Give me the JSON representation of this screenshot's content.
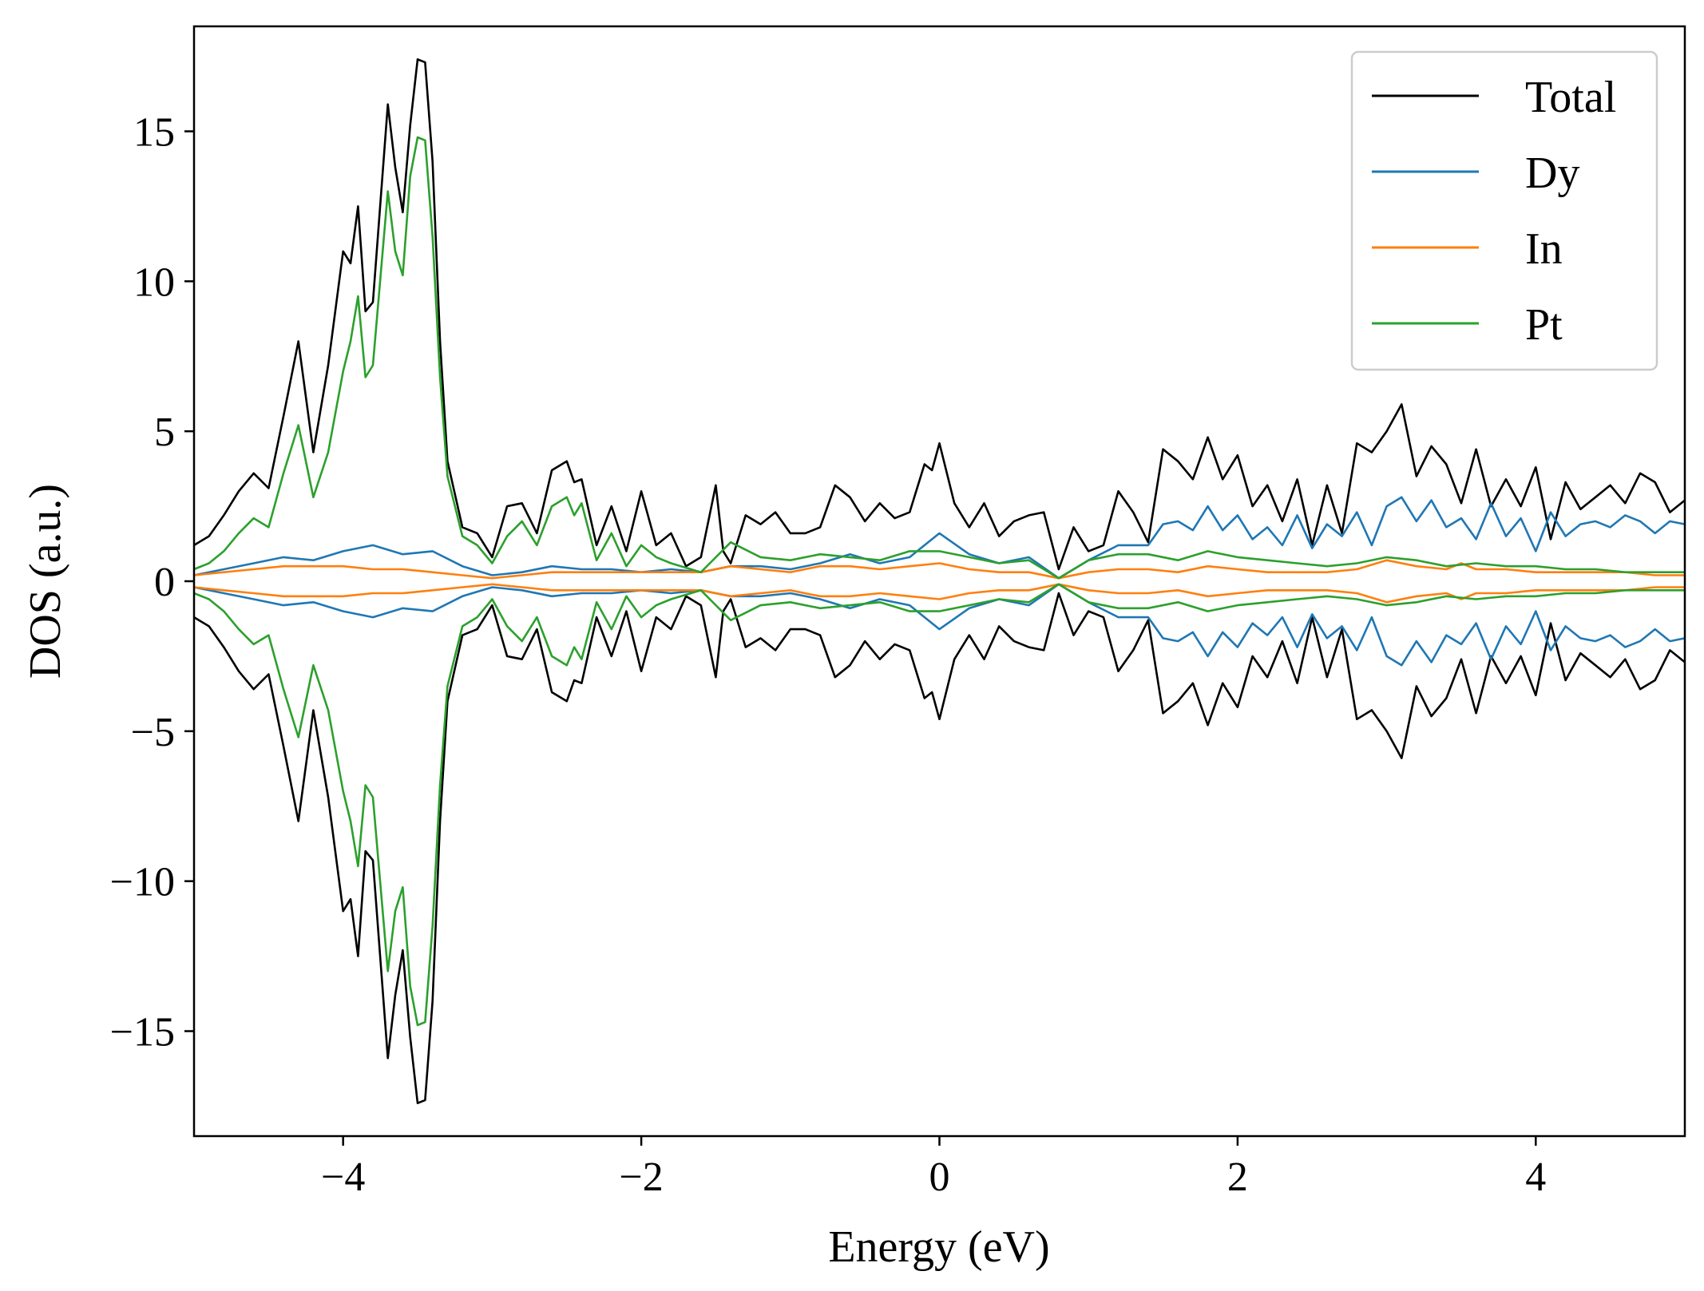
{
  "chart_data": {
    "type": "line",
    "title": "",
    "xlabel": "Energy (eV)",
    "ylabel": "DOS (a.u.)",
    "xlim": [
      -5,
      5
    ],
    "ylim": [
      -18.5,
      18.5
    ],
    "xticks": [
      -4,
      -2,
      0,
      2,
      4
    ],
    "xtick_labels": [
      "−4",
      "−2",
      "0",
      "2",
      "4"
    ],
    "yticks": [
      15,
      10,
      5,
      0,
      -5,
      -10,
      -15
    ],
    "ytick_labels": [
      "15",
      "10",
      "5",
      "0",
      "−5",
      "−10",
      "−15"
    ],
    "grid": false,
    "legend_position": "top-right",
    "spin_symmetric_mirror": true,
    "series": [
      {
        "name": "Total",
        "color": "#000000",
        "x": [
          -5.0,
          -4.9,
          -4.8,
          -4.7,
          -4.6,
          -4.5,
          -4.4,
          -4.3,
          -4.2,
          -4.1,
          -4.0,
          -3.95,
          -3.9,
          -3.85,
          -3.8,
          -3.7,
          -3.65,
          -3.6,
          -3.55,
          -3.5,
          -3.45,
          -3.4,
          -3.35,
          -3.3,
          -3.2,
          -3.1,
          -3.0,
          -2.9,
          -2.8,
          -2.7,
          -2.6,
          -2.5,
          -2.45,
          -2.4,
          -2.3,
          -2.2,
          -2.1,
          -2.0,
          -1.9,
          -1.8,
          -1.7,
          -1.6,
          -1.5,
          -1.45,
          -1.4,
          -1.3,
          -1.2,
          -1.1,
          -1.0,
          -0.9,
          -0.8,
          -0.7,
          -0.6,
          -0.5,
          -0.4,
          -0.3,
          -0.2,
          -0.1,
          -0.05,
          0.0,
          0.1,
          0.2,
          0.3,
          0.4,
          0.5,
          0.6,
          0.7,
          0.8,
          0.9,
          1.0,
          1.1,
          1.2,
          1.3,
          1.4,
          1.5,
          1.6,
          1.7,
          1.8,
          1.9,
          2.0,
          2.1,
          2.2,
          2.3,
          2.4,
          2.5,
          2.6,
          2.7,
          2.8,
          2.9,
          3.0,
          3.1,
          3.2,
          3.3,
          3.4,
          3.5,
          3.6,
          3.7,
          3.8,
          3.9,
          4.0,
          4.1,
          4.2,
          4.3,
          4.4,
          4.5,
          4.6,
          4.7,
          4.8,
          4.9,
          5.0
        ],
        "y": [
          1.2,
          1.5,
          2.2,
          3.0,
          3.6,
          3.1,
          5.5,
          8.0,
          4.3,
          7.2,
          11.0,
          10.6,
          12.5,
          9.0,
          9.3,
          15.9,
          13.8,
          12.3,
          15.2,
          17.4,
          17.3,
          14.0,
          8.0,
          4.0,
          1.8,
          1.6,
          0.8,
          2.5,
          2.6,
          1.6,
          3.7,
          4.0,
          3.3,
          3.4,
          1.2,
          2.5,
          1.0,
          3.0,
          1.2,
          1.6,
          0.5,
          0.8,
          3.2,
          1.0,
          0.6,
          2.2,
          1.9,
          2.3,
          1.6,
          1.6,
          1.8,
          3.2,
          2.8,
          2.0,
          2.6,
          2.1,
          2.3,
          3.9,
          3.7,
          4.6,
          2.6,
          1.8,
          2.6,
          1.5,
          2.0,
          2.2,
          2.3,
          0.4,
          1.8,
          1.0,
          1.2,
          3.0,
          2.3,
          1.3,
          4.4,
          4.0,
          3.4,
          4.8,
          3.4,
          4.2,
          2.5,
          3.2,
          2.0,
          3.4,
          1.2,
          3.2,
          1.6,
          4.6,
          4.3,
          5.0,
          5.9,
          3.5,
          4.5,
          3.9,
          2.6,
          4.4,
          2.5,
          3.4,
          2.5,
          3.8,
          1.4,
          3.3,
          2.4,
          2.8,
          3.2,
          2.6,
          3.6,
          3.3,
          2.3,
          2.7
        ]
      },
      {
        "name": "Dy",
        "color": "#1f77b4",
        "x": [
          -5.0,
          -4.8,
          -4.6,
          -4.4,
          -4.2,
          -4.0,
          -3.8,
          -3.6,
          -3.4,
          -3.2,
          -3.0,
          -2.8,
          -2.6,
          -2.4,
          -2.2,
          -2.0,
          -1.8,
          -1.6,
          -1.4,
          -1.2,
          -1.0,
          -0.8,
          -0.6,
          -0.4,
          -0.2,
          0.0,
          0.2,
          0.4,
          0.6,
          0.8,
          1.0,
          1.2,
          1.4,
          1.5,
          1.6,
          1.7,
          1.8,
          1.9,
          2.0,
          2.1,
          2.2,
          2.3,
          2.4,
          2.5,
          2.6,
          2.7,
          2.8,
          2.9,
          3.0,
          3.1,
          3.2,
          3.3,
          3.4,
          3.5,
          3.6,
          3.7,
          3.8,
          3.9,
          4.0,
          4.1,
          4.2,
          4.3,
          4.4,
          4.5,
          4.6,
          4.7,
          4.8,
          4.9,
          5.0
        ],
        "y": [
          0.2,
          0.4,
          0.6,
          0.8,
          0.7,
          1.0,
          1.2,
          0.9,
          1.0,
          0.5,
          0.2,
          0.3,
          0.5,
          0.4,
          0.4,
          0.3,
          0.4,
          0.3,
          0.5,
          0.5,
          0.4,
          0.6,
          0.9,
          0.6,
          0.8,
          1.6,
          0.9,
          0.6,
          0.8,
          0.1,
          0.7,
          1.2,
          1.2,
          1.9,
          2.0,
          1.7,
          2.5,
          1.7,
          2.2,
          1.4,
          1.8,
          1.2,
          2.2,
          1.1,
          1.9,
          1.5,
          2.3,
          1.2,
          2.5,
          2.8,
          2.0,
          2.7,
          1.8,
          2.1,
          1.4,
          2.6,
          1.5,
          2.1,
          1.0,
          2.3,
          1.5,
          1.9,
          2.0,
          1.8,
          2.2,
          2.0,
          1.6,
          2.0,
          1.9
        ]
      },
      {
        "name": "In",
        "color": "#ff7f0e",
        "x": [
          -5.0,
          -4.8,
          -4.6,
          -4.4,
          -4.2,
          -4.0,
          -3.8,
          -3.6,
          -3.4,
          -3.2,
          -3.0,
          -2.8,
          -2.6,
          -2.4,
          -2.2,
          -2.0,
          -1.8,
          -1.6,
          -1.4,
          -1.2,
          -1.0,
          -0.8,
          -0.6,
          -0.4,
          -0.2,
          0.0,
          0.2,
          0.4,
          0.6,
          0.8,
          1.0,
          1.2,
          1.4,
          1.6,
          1.8,
          2.0,
          2.2,
          2.4,
          2.6,
          2.8,
          3.0,
          3.2,
          3.4,
          3.5,
          3.6,
          3.8,
          4.0,
          4.2,
          4.4,
          4.6,
          4.8,
          5.0
        ],
        "y": [
          0.2,
          0.3,
          0.4,
          0.5,
          0.5,
          0.5,
          0.4,
          0.4,
          0.3,
          0.2,
          0.1,
          0.2,
          0.3,
          0.3,
          0.3,
          0.3,
          0.3,
          0.3,
          0.5,
          0.4,
          0.3,
          0.5,
          0.5,
          0.4,
          0.5,
          0.6,
          0.4,
          0.3,
          0.3,
          0.1,
          0.3,
          0.4,
          0.4,
          0.3,
          0.5,
          0.4,
          0.3,
          0.3,
          0.3,
          0.4,
          0.7,
          0.5,
          0.4,
          0.6,
          0.4,
          0.4,
          0.3,
          0.3,
          0.3,
          0.3,
          0.2,
          0.2
        ]
      },
      {
        "name": "Pt",
        "color": "#2ca02c",
        "x": [
          -5.0,
          -4.9,
          -4.8,
          -4.7,
          -4.6,
          -4.5,
          -4.4,
          -4.3,
          -4.2,
          -4.1,
          -4.0,
          -3.95,
          -3.9,
          -3.85,
          -3.8,
          -3.7,
          -3.65,
          -3.6,
          -3.55,
          -3.5,
          -3.45,
          -3.4,
          -3.35,
          -3.3,
          -3.2,
          -3.1,
          -3.0,
          -2.9,
          -2.8,
          -2.7,
          -2.6,
          -2.5,
          -2.45,
          -2.4,
          -2.3,
          -2.2,
          -2.1,
          -2.0,
          -1.9,
          -1.8,
          -1.6,
          -1.4,
          -1.2,
          -1.0,
          -0.8,
          -0.6,
          -0.4,
          -0.2,
          0.0,
          0.2,
          0.4,
          0.6,
          0.8,
          1.0,
          1.2,
          1.4,
          1.6,
          1.8,
          2.0,
          2.2,
          2.4,
          2.6,
          2.8,
          3.0,
          3.2,
          3.4,
          3.6,
          3.8,
          4.0,
          4.2,
          4.4,
          4.6,
          4.8,
          5.0
        ],
        "y": [
          0.4,
          0.6,
          1.0,
          1.6,
          2.1,
          1.8,
          3.6,
          5.2,
          2.8,
          4.3,
          7.0,
          8.0,
          9.5,
          6.8,
          7.2,
          13.0,
          11.0,
          10.2,
          13.5,
          14.8,
          14.7,
          11.5,
          6.8,
          3.5,
          1.5,
          1.2,
          0.6,
          1.5,
          2.0,
          1.2,
          2.5,
          2.8,
          2.2,
          2.6,
          0.7,
          1.6,
          0.5,
          1.2,
          0.8,
          0.6,
          0.3,
          1.3,
          0.8,
          0.7,
          0.9,
          0.8,
          0.7,
          1.0,
          1.0,
          0.8,
          0.6,
          0.7,
          0.1,
          0.7,
          0.9,
          0.9,
          0.7,
          1.0,
          0.8,
          0.7,
          0.6,
          0.5,
          0.6,
          0.8,
          0.7,
          0.5,
          0.6,
          0.5,
          0.5,
          0.4,
          0.4,
          0.3,
          0.3,
          0.3
        ]
      }
    ]
  }
}
